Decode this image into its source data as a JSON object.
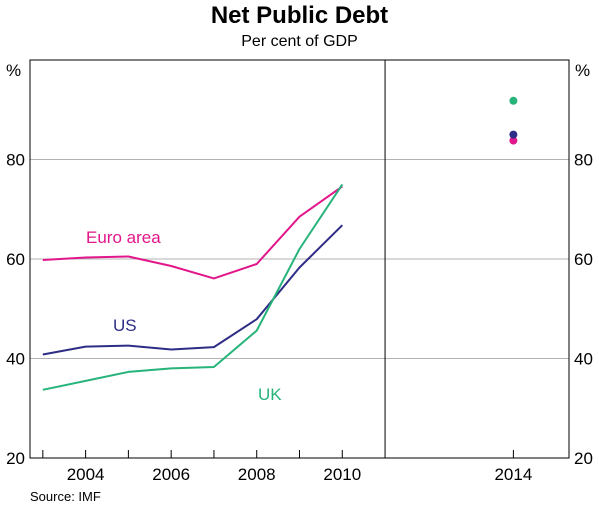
{
  "chart_data": {
    "type": "line",
    "title": "Net Public Debt",
    "subtitle": "Per cent of GDP",
    "y_unit_left": "%",
    "y_unit_right": "%",
    "ylim": [
      20,
      100
    ],
    "y_ticks": [
      20,
      40,
      60,
      80
    ],
    "xlim": [
      2002.7,
      2015.3
    ],
    "x_ticks": [
      {
        "value": 2004,
        "label": "2004"
      },
      {
        "value": 2006,
        "label": "2006"
      },
      {
        "value": 2008,
        "label": "2008"
      },
      {
        "value": 2010,
        "label": "2010"
      },
      {
        "value": 2014,
        "label": "2014"
      }
    ],
    "series": [
      {
        "name": "Euro area",
        "color": "#e2168b",
        "x": [
          2003,
          2004,
          2005,
          2006,
          2007,
          2008,
          2009,
          2010
        ],
        "y": [
          59.8,
          60.3,
          60.5,
          58.6,
          56.1,
          59.0,
          68.5,
          74.6
        ],
        "projection": {
          "x": 2014,
          "y": 83.8
        }
      },
      {
        "name": "US",
        "color": "#2e2d85",
        "x": [
          2003,
          2004,
          2005,
          2006,
          2007,
          2008,
          2009,
          2010
        ],
        "y": [
          40.8,
          42.4,
          42.6,
          41.8,
          42.3,
          47.9,
          58.3,
          66.8
        ],
        "projection": {
          "x": 2014,
          "y": 85.0
        }
      },
      {
        "name": "UK",
        "color": "#27b47a",
        "x": [
          2003,
          2004,
          2005,
          2006,
          2007,
          2008,
          2009,
          2010
        ],
        "y": [
          33.7,
          35.5,
          37.3,
          38.0,
          38.3,
          45.6,
          62.0,
          75.0
        ],
        "projection": {
          "x": 2014,
          "y": 91.8
        }
      }
    ],
    "annotations": [
      {
        "text": "Euro area",
        "series": "Euro area"
      },
      {
        "text": "US",
        "series": "US"
      },
      {
        "text": "UK",
        "series": "UK"
      }
    ],
    "grid": true,
    "source": "Source: IMF"
  }
}
